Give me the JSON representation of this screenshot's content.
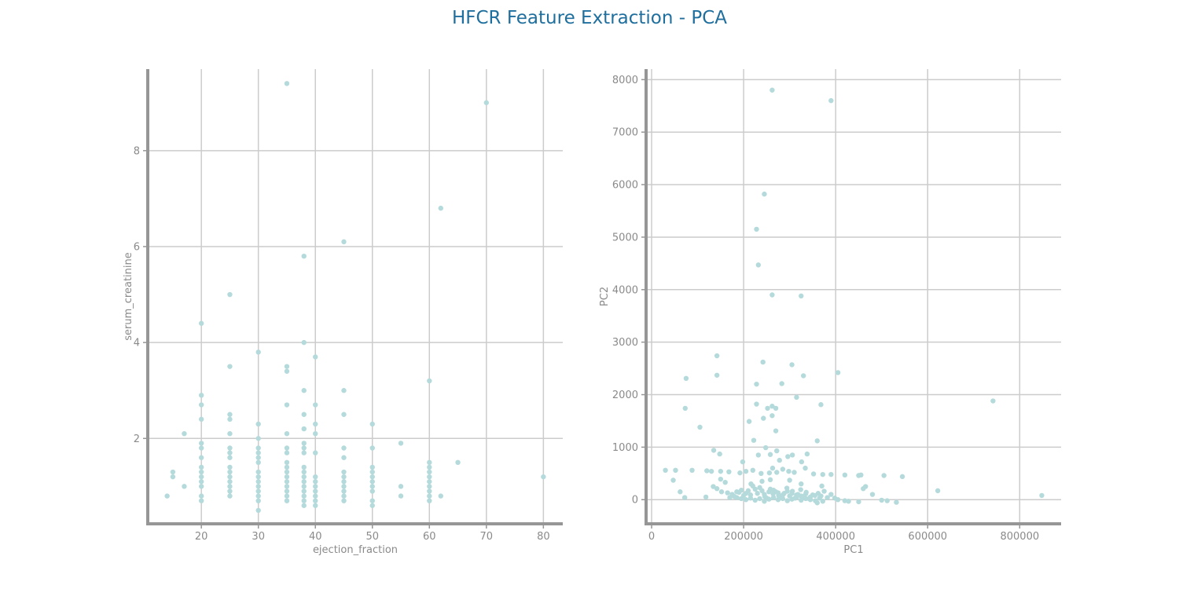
{
  "title": "HFCR Feature Extraction - PCA",
  "colors": {
    "title": "#1f6f9e",
    "points": "#b5dadb",
    "grid": "#cccccc",
    "spine": "#969696",
    "text": "#8a8a8a"
  },
  "chart_data": [
    {
      "type": "scatter",
      "xlabel": "ejection_fraction",
      "ylabel": "serum_creatinine",
      "xlim": [
        10.6,
        83.4
      ],
      "ylim": [
        0.22,
        9.7
      ],
      "xticks": [
        20,
        30,
        40,
        50,
        60,
        70,
        80
      ],
      "yticks": [
        2,
        4,
        6,
        8
      ],
      "grid": true,
      "points": [
        [
          14,
          0.8
        ],
        [
          15,
          1.2
        ],
        [
          15,
          1.3
        ],
        [
          17,
          1.0
        ],
        [
          17,
          2.1
        ],
        [
          20,
          0.7
        ],
        [
          20,
          0.8
        ],
        [
          20,
          1.0
        ],
        [
          20,
          1.1
        ],
        [
          20,
          1.2
        ],
        [
          20,
          1.3
        ],
        [
          20,
          1.4
        ],
        [
          20,
          1.6
        ],
        [
          20,
          1.8
        ],
        [
          20,
          1.9
        ],
        [
          20,
          2.4
        ],
        [
          20,
          2.7
        ],
        [
          20,
          2.9
        ],
        [
          20,
          4.4
        ],
        [
          25,
          0.8
        ],
        [
          25,
          0.9
        ],
        [
          25,
          1.0
        ],
        [
          25,
          1.1
        ],
        [
          25,
          1.2
        ],
        [
          25,
          1.3
        ],
        [
          25,
          1.4
        ],
        [
          25,
          1.6
        ],
        [
          25,
          1.7
        ],
        [
          25,
          1.8
        ],
        [
          25,
          2.1
        ],
        [
          25,
          2.4
        ],
        [
          25,
          2.5
        ],
        [
          25,
          3.5
        ],
        [
          25,
          5.0
        ],
        [
          30,
          0.5
        ],
        [
          30,
          0.7
        ],
        [
          30,
          0.8
        ],
        [
          30,
          0.9
        ],
        [
          30,
          1.0
        ],
        [
          30,
          1.1
        ],
        [
          30,
          1.2
        ],
        [
          30,
          1.3
        ],
        [
          30,
          1.5
        ],
        [
          30,
          1.6
        ],
        [
          30,
          1.7
        ],
        [
          30,
          1.8
        ],
        [
          30,
          2.0
        ],
        [
          30,
          2.3
        ],
        [
          30,
          3.8
        ],
        [
          35,
          0.7
        ],
        [
          35,
          0.8
        ],
        [
          35,
          0.9
        ],
        [
          35,
          1.0
        ],
        [
          35,
          1.1
        ],
        [
          35,
          1.2
        ],
        [
          35,
          1.3
        ],
        [
          35,
          1.4
        ],
        [
          35,
          1.5
        ],
        [
          35,
          1.7
        ],
        [
          35,
          1.8
        ],
        [
          35,
          2.1
        ],
        [
          35,
          2.7
        ],
        [
          35,
          3.4
        ],
        [
          35,
          3.5
        ],
        [
          35,
          9.4
        ],
        [
          38,
          0.6
        ],
        [
          38,
          0.7
        ],
        [
          38,
          0.8
        ],
        [
          38,
          0.9
        ],
        [
          38,
          1.0
        ],
        [
          38,
          1.1
        ],
        [
          38,
          1.2
        ],
        [
          38,
          1.3
        ],
        [
          38,
          1.4
        ],
        [
          38,
          1.7
        ],
        [
          38,
          1.8
        ],
        [
          38,
          1.9
        ],
        [
          38,
          2.2
        ],
        [
          38,
          2.5
        ],
        [
          38,
          3.0
        ],
        [
          38,
          4.0
        ],
        [
          38,
          5.8
        ],
        [
          40,
          0.6
        ],
        [
          40,
          0.7
        ],
        [
          40,
          0.8
        ],
        [
          40,
          0.9
        ],
        [
          40,
          1.0
        ],
        [
          40,
          1.1
        ],
        [
          40,
          1.2
        ],
        [
          40,
          1.7
        ],
        [
          40,
          2.1
        ],
        [
          40,
          2.3
        ],
        [
          40,
          2.7
        ],
        [
          40,
          3.7
        ],
        [
          45,
          0.7
        ],
        [
          45,
          0.8
        ],
        [
          45,
          0.9
        ],
        [
          45,
          1.0
        ],
        [
          45,
          1.1
        ],
        [
          45,
          1.2
        ],
        [
          45,
          1.3
        ],
        [
          45,
          1.6
        ],
        [
          45,
          1.8
        ],
        [
          45,
          2.5
        ],
        [
          45,
          3.0
        ],
        [
          45,
          6.1
        ],
        [
          50,
          0.6
        ],
        [
          50,
          0.7
        ],
        [
          50,
          0.9
        ],
        [
          50,
          1.0
        ],
        [
          50,
          1.1
        ],
        [
          50,
          1.2
        ],
        [
          50,
          1.3
        ],
        [
          50,
          1.4
        ],
        [
          50,
          1.8
        ],
        [
          50,
          2.3
        ],
        [
          55,
          0.8
        ],
        [
          55,
          1.0
        ],
        [
          55,
          1.9
        ],
        [
          60,
          0.7
        ],
        [
          60,
          0.8
        ],
        [
          60,
          0.9
        ],
        [
          60,
          1.0
        ],
        [
          60,
          1.1
        ],
        [
          60,
          1.2
        ],
        [
          60,
          1.3
        ],
        [
          60,
          1.4
        ],
        [
          60,
          1.5
        ],
        [
          60,
          3.2
        ],
        [
          62,
          0.8
        ],
        [
          62,
          6.8
        ],
        [
          65,
          1.5
        ],
        [
          70,
          9.0
        ],
        [
          80,
          1.2
        ]
      ]
    },
    {
      "type": "scatter",
      "xlabel": "PC1",
      "ylabel": "PC2",
      "xlim": [
        -12000,
        890000
      ],
      "ylim": [
        -460,
        8200
      ],
      "xticks": [
        0,
        200000,
        400000,
        600000,
        800000
      ],
      "yticks": [
        0,
        1000,
        2000,
        3000,
        4000,
        5000,
        6000,
        7000,
        8000
      ],
      "grid": true,
      "points": [
        [
          262000,
          7800
        ],
        [
          390000,
          7600
        ],
        [
          245000,
          5820
        ],
        [
          228000,
          5150
        ],
        [
          232000,
          4470
        ],
        [
          262000,
          3900
        ],
        [
          325000,
          3880
        ],
        [
          142000,
          2740
        ],
        [
          242000,
          2620
        ],
        [
          305000,
          2570
        ],
        [
          75000,
          2310
        ],
        [
          142000,
          2370
        ],
        [
          330000,
          2360
        ],
        [
          405000,
          2420
        ],
        [
          228000,
          2200
        ],
        [
          283000,
          2210
        ],
        [
          742000,
          1880
        ],
        [
          73000,
          1740
        ],
        [
          228000,
          1820
        ],
        [
          252000,
          1740
        ],
        [
          262000,
          1780
        ],
        [
          270000,
          1740
        ],
        [
          315000,
          1950
        ],
        [
          368000,
          1810
        ],
        [
          105000,
          1380
        ],
        [
          212000,
          1490
        ],
        [
          243000,
          1550
        ],
        [
          270000,
          1310
        ],
        [
          262000,
          1600
        ],
        [
          360000,
          1120
        ],
        [
          222000,
          1130
        ],
        [
          135000,
          940
        ],
        [
          148000,
          870
        ],
        [
          198000,
          720
        ],
        [
          232000,
          850
        ],
        [
          248000,
          990
        ],
        [
          258000,
          860
        ],
        [
          272000,
          930
        ],
        [
          278000,
          750
        ],
        [
          296000,
          820
        ],
        [
          306000,
          850
        ],
        [
          326000,
          720
        ],
        [
          338000,
          870
        ],
        [
          30000,
          560
        ],
        [
          52000,
          560
        ],
        [
          88000,
          560
        ],
        [
          120000,
          550
        ],
        [
          130000,
          540
        ],
        [
          150000,
          540
        ],
        [
          168000,
          530
        ],
        [
          192000,
          510
        ],
        [
          205000,
          540
        ],
        [
          220000,
          560
        ],
        [
          238000,
          500
        ],
        [
          256000,
          510
        ],
        [
          263000,
          600
        ],
        [
          272000,
          520
        ],
        [
          285000,
          580
        ],
        [
          298000,
          540
        ],
        [
          310000,
          520
        ],
        [
          334000,
          600
        ],
        [
          352000,
          490
        ],
        [
          372000,
          480
        ],
        [
          390000,
          480
        ],
        [
          420000,
          470
        ],
        [
          450000,
          460
        ],
        [
          455000,
          470
        ],
        [
          505000,
          460
        ],
        [
          545000,
          440
        ],
        [
          47000,
          370
        ],
        [
          150000,
          390
        ],
        [
          160000,
          330
        ],
        [
          216000,
          300
        ],
        [
          240000,
          350
        ],
        [
          258000,
          380
        ],
        [
          300000,
          370
        ],
        [
          325000,
          300
        ],
        [
          370000,
          260
        ],
        [
          460000,
          210
        ],
        [
          465000,
          250
        ],
        [
          62000,
          150
        ],
        [
          72000,
          40
        ],
        [
          118000,
          50
        ],
        [
          134000,
          250
        ],
        [
          142000,
          210
        ],
        [
          152000,
          150
        ],
        [
          165000,
          130
        ],
        [
          170000,
          40
        ],
        [
          180000,
          60
        ],
        [
          190000,
          140
        ],
        [
          200000,
          80
        ],
        [
          210000,
          170
        ],
        [
          220000,
          260
        ],
        [
          230000,
          120
        ],
        [
          240000,
          170
        ],
        [
          246000,
          60
        ],
        [
          250000,
          30
        ],
        [
          258000,
          200
        ],
        [
          264000,
          110
        ],
        [
          270000,
          150
        ],
        [
          276000,
          80
        ],
        [
          282000,
          40
        ],
        [
          288000,
          120
        ],
        [
          294000,
          220
        ],
        [
          300000,
          70
        ],
        [
          306000,
          160
        ],
        [
          312000,
          30
        ],
        [
          318000,
          100
        ],
        [
          324000,
          190
        ],
        [
          330000,
          60
        ],
        [
          336000,
          140
        ],
        [
          342000,
          20
        ],
        [
          350000,
          90
        ],
        [
          356000,
          -20
        ],
        [
          362000,
          120
        ],
        [
          368000,
          70
        ],
        [
          375000,
          160
        ],
        [
          382000,
          40
        ],
        [
          390000,
          100
        ],
        [
          398000,
          30
        ],
        [
          405000,
          0
        ],
        [
          420000,
          -20
        ],
        [
          428000,
          -30
        ],
        [
          450000,
          -40
        ],
        [
          480000,
          100
        ],
        [
          500000,
          -10
        ],
        [
          512000,
          -20
        ],
        [
          532000,
          -50
        ],
        [
          622000,
          170
        ],
        [
          848000,
          80
        ],
        [
          185000,
          40
        ],
        [
          195000,
          20
        ],
        [
          205000,
          0
        ],
        [
          215000,
          30
        ],
        [
          225000,
          -10
        ],
        [
          235000,
          20
        ],
        [
          245000,
          -30
        ],
        [
          255000,
          10
        ],
        [
          265000,
          40
        ],
        [
          275000,
          0
        ],
        [
          285000,
          20
        ],
        [
          295000,
          -20
        ],
        [
          305000,
          10
        ],
        [
          315000,
          40
        ],
        [
          325000,
          -10
        ],
        [
          335000,
          20
        ],
        [
          345000,
          0
        ],
        [
          360000,
          -60
        ],
        [
          372000,
          -30
        ],
        [
          175000,
          100
        ],
        [
          185000,
          150
        ],
        [
          195000,
          180
        ],
        [
          205000,
          120
        ],
        [
          215000,
          90
        ],
        [
          225000,
          200
        ],
        [
          235000,
          230
        ],
        [
          245000,
          100
        ],
        [
          255000,
          150
        ],
        [
          265000,
          180
        ],
        [
          275000,
          130
        ],
        [
          285000,
          90
        ],
        [
          295000,
          160
        ],
        [
          305000,
          120
        ],
        [
          315000,
          90
        ],
        [
          325000,
          70
        ],
        [
          335000,
          110
        ],
        [
          345000,
          50
        ],
        [
          355000,
          80
        ],
        [
          365000,
          30
        ]
      ]
    }
  ]
}
